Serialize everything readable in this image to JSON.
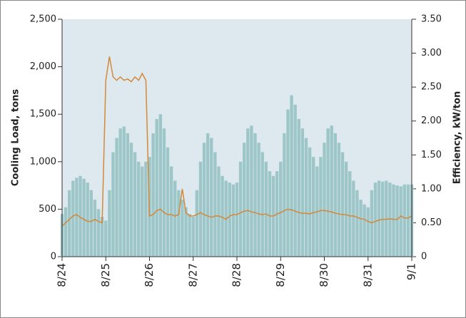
{
  "chart_data": {
    "type": "bar-line",
    "categories": [
      "8/24",
      null,
      null,
      null,
      null,
      null,
      null,
      null,
      null,
      null,
      null,
      null,
      "8/25",
      null,
      null,
      null,
      null,
      null,
      null,
      null,
      null,
      null,
      null,
      null,
      "8/26",
      null,
      null,
      null,
      null,
      null,
      null,
      null,
      null,
      null,
      null,
      null,
      "8/27",
      null,
      null,
      null,
      null,
      null,
      null,
      null,
      null,
      null,
      null,
      null,
      "8/28",
      null,
      null,
      null,
      null,
      null,
      null,
      null,
      null,
      null,
      null,
      null,
      "8/29",
      null,
      null,
      null,
      null,
      null,
      null,
      null,
      null,
      null,
      null,
      null,
      "8/30",
      null,
      null,
      null,
      null,
      null,
      null,
      null,
      null,
      null,
      null,
      null,
      "8/31",
      null,
      null,
      null,
      null,
      null,
      null,
      null,
      null,
      null,
      null,
      null,
      "9/1"
    ],
    "series": [
      {
        "type": "bar",
        "color": "#9cc6c8",
        "values": [
          450,
          520,
          700,
          800,
          830,
          850,
          820,
          780,
          700,
          600,
          500,
          420,
          380,
          700,
          1100,
          1250,
          1350,
          1370,
          1300,
          1200,
          1100,
          1000,
          950,
          1000,
          1050,
          1300,
          1450,
          1500,
          1350,
          1150,
          950,
          800,
          700,
          600,
          520,
          450,
          420,
          700,
          1000,
          1200,
          1300,
          1250,
          1100,
          950,
          850,
          800,
          780,
          760,
          780,
          1000,
          1200,
          1350,
          1380,
          1300,
          1200,
          1100,
          1000,
          900,
          850,
          900,
          1000,
          1300,
          1550,
          1700,
          1600,
          1450,
          1350,
          1250,
          1150,
          1050,
          950,
          1050,
          1200,
          1350,
          1380,
          1300,
          1200,
          1100,
          1000,
          900,
          800,
          700,
          600,
          550,
          520,
          700,
          780,
          800,
          790,
          800,
          780,
          760,
          750,
          740,
          760,
          760,
          760
        ]
      },
      {
        "type": "line",
        "axis": "y2",
        "color": "#d4883a",
        "values": [
          0.45,
          0.5,
          0.55,
          0.6,
          0.62,
          0.58,
          0.55,
          0.52,
          0.52,
          0.55,
          0.52,
          0.5,
          2.6,
          2.95,
          2.65,
          2.6,
          2.65,
          2.6,
          2.62,
          2.58,
          2.65,
          2.6,
          2.7,
          2.6,
          0.6,
          0.62,
          0.68,
          0.7,
          0.65,
          0.62,
          0.62,
          0.6,
          0.62,
          1.0,
          0.65,
          0.6,
          0.6,
          0.62,
          0.65,
          0.62,
          0.6,
          0.58,
          0.6,
          0.6,
          0.58,
          0.55,
          0.6,
          0.62,
          0.62,
          0.65,
          0.67,
          0.68,
          0.66,
          0.65,
          0.63,
          0.62,
          0.63,
          0.6,
          0.6,
          0.63,
          0.65,
          0.68,
          0.7,
          0.69,
          0.67,
          0.65,
          0.64,
          0.64,
          0.63,
          0.65,
          0.66,
          0.68,
          0.68,
          0.67,
          0.66,
          0.64,
          0.63,
          0.62,
          0.62,
          0.6,
          0.6,
          0.58,
          0.56,
          0.55,
          0.52,
          0.5,
          0.52,
          0.54,
          0.55,
          0.55,
          0.56,
          0.55,
          0.55,
          0.6,
          0.57,
          0.57,
          0.6
        ]
      }
    ],
    "y_label": "Cooling Load, tons",
    "y2_label": "Efficiency, kW/ton",
    "ylim": [
      0,
      2500
    ],
    "yticks": [
      0,
      500,
      {
        "value": 1000,
        "label": "1,000"
      },
      {
        "value": 1500,
        "label": "1,500"
      },
      {
        "value": 2000,
        "label": "2,000"
      },
      {
        "value": 2500,
        "label": "2,500"
      }
    ],
    "y2lim": [
      0,
      3.5
    ],
    "y2ticks": [
      0,
      {
        "value": 0.5,
        "label": "0.50"
      },
      {
        "value": 1,
        "label": "1.00"
      },
      {
        "value": 1.5,
        "label": "1.50"
      },
      {
        "value": 2,
        "label": "2.00"
      },
      {
        "value": 2.5,
        "label": "2.50"
      },
      {
        "value": 3,
        "label": "3.00"
      },
      {
        "value": 3.5,
        "label": "3.50"
      }
    ],
    "plot_background": "#dde9ee"
  }
}
